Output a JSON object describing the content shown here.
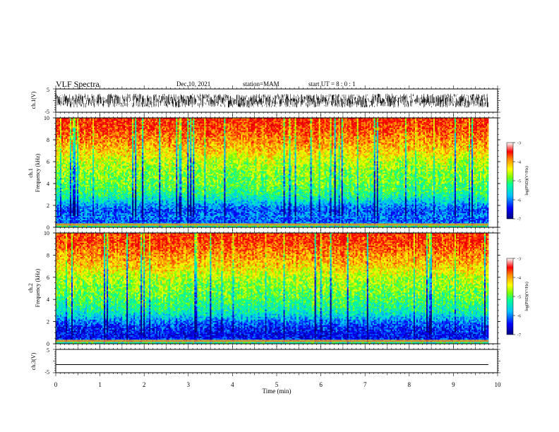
{
  "header": {
    "title": "VLF Spectra",
    "date": "Dec.10, 2021",
    "station": "station=MAM",
    "start": "start UT = 8 : 0 : 1"
  },
  "colors": {
    "colormap": [
      "#00007f",
      "#0000ff",
      "#00bfff",
      "#00ff99",
      "#7fff00",
      "#ffff00",
      "#ff8c00",
      "#ff0000"
    ]
  },
  "chart_data": [
    {
      "type": "line",
      "name": "ch.1 waveform",
      "ylabel": "ch.1(V)",
      "ylim": [
        -5,
        5
      ],
      "yticks": [
        "5",
        "-5"
      ],
      "xlim": [
        0,
        10
      ],
      "description_amplitude_range": [
        -3,
        3
      ],
      "signal": "dense noise between about -3 V and +3 V over 0 to 9.8 min"
    },
    {
      "type": "heatmap",
      "name": "ch.1 spectrogram",
      "ylabel_line1": "ch.1",
      "ylabel_line2": "Frequency (kHz)",
      "ylim": [
        0,
        10
      ],
      "yticks": [
        "0",
        "2",
        "4",
        "6",
        "8",
        "10"
      ],
      "xlim": [
        0,
        9.8
      ],
      "colorbar": {
        "label": "log(PSD)(V²/Hz)",
        "range": [
          -7,
          -3
        ],
        "ticks": [
          "-3",
          "-4",
          "-5",
          "-6",
          "-7"
        ]
      },
      "frequency_profile_kHz": [
        0,
        0.5,
        1,
        1.5,
        2,
        2.5,
        3,
        4,
        5,
        6,
        7,
        8,
        9,
        10
      ],
      "mean_logpsd_profile": [
        -5,
        -6.2,
        -6.0,
        -6.2,
        -5.9,
        -5.5,
        -5.2,
        -4.9,
        -4.8,
        -4.6,
        -4.2,
        -3.9,
        -3.6,
        -3.5
      ]
    },
    {
      "type": "heatmap",
      "name": "ch.2 spectrogram",
      "ylabel_line1": "ch.2",
      "ylabel_line2": "Frequency (kHz)",
      "ylim": [
        0,
        10
      ],
      "yticks": [
        "0",
        "2",
        "4",
        "6",
        "8",
        "10"
      ],
      "xlim": [
        0,
        9.8
      ],
      "colorbar": {
        "label": "log(PSD)(V²/Hz)",
        "range": [
          -7,
          -3
        ],
        "ticks": [
          "-3",
          "-4",
          "-5",
          "-6",
          "-7"
        ]
      },
      "frequency_profile_kHz": [
        0,
        0.5,
        1,
        1.5,
        2,
        2.5,
        3,
        4,
        5,
        6,
        7,
        8,
        9,
        10
      ],
      "mean_logpsd_profile": [
        -5,
        -6.5,
        -6.4,
        -6.3,
        -6.0,
        -5.6,
        -5.3,
        -5.0,
        -4.8,
        -4.6,
        -4.2,
        -3.9,
        -3.6,
        -3.5
      ]
    },
    {
      "type": "line",
      "name": "ch.3 waveform",
      "ylabel": "ch.3(V)",
      "ylim": [
        -5,
        5
      ],
      "yticks": [
        "5",
        "-5"
      ],
      "xlim": [
        0,
        10
      ],
      "values_constant": -1.5
    }
  ],
  "xaxis": {
    "label": "Time (min)",
    "range": [
      0,
      10
    ],
    "ticks": [
      "0",
      "1",
      "2",
      "3",
      "4",
      "5",
      "6",
      "7",
      "8",
      "9",
      "10"
    ]
  }
}
